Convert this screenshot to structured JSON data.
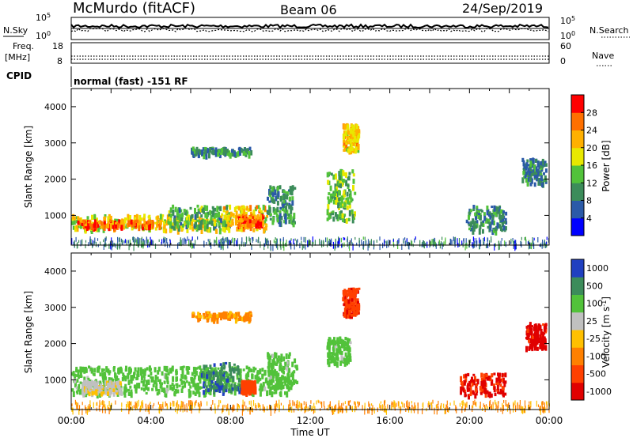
{
  "header": {
    "station": "McMurdo (fitACF)",
    "beam": "Beam 06",
    "date": "24/Sep/2019"
  },
  "summary_panels": {
    "noise": {
      "left_label": "N.Sky",
      "left_ticks": [
        "10^5",
        "10^0"
      ],
      "right_label": "N.Search",
      "right_ticks": [
        "10^5",
        "10^0"
      ]
    },
    "frequency": {
      "left_label_1": "Freq.",
      "left_label_2": "[MHz]",
      "left_ticks": [
        "18",
        "8"
      ],
      "right_label": "Nave",
      "right_ticks": [
        "60",
        "0"
      ]
    },
    "cpid": {
      "label": "CPID",
      "text": "normal (fast) -151 RF"
    }
  },
  "colors": {
    "scale_power": [
      "#0000ff",
      "#2b5aa8",
      "#3c8c5a",
      "#52c23a",
      "#e8e800",
      "#ffb000",
      "#ff7000",
      "#ff0000"
    ],
    "scale_velocity": [
      "#2040c0",
      "#3c8c5a",
      "#52c23a",
      "#c0c0c0",
      "#ffc000",
      "#ff8000",
      "#ff4000",
      "#e00000"
    ]
  },
  "chart_data": [
    {
      "type": "heatmap",
      "name": "power",
      "ylabel": "Slant Range [km]",
      "xlabel": "",
      "xlim": [
        0,
        24
      ],
      "ylim": [
        180,
        4500
      ],
      "yticks": [
        "1000",
        "2000",
        "3000",
        "4000"
      ],
      "colorbar": {
        "label": "Power [dB]",
        "ticks": [
          "4",
          "8",
          "12",
          "16",
          "20",
          "24",
          "28"
        ],
        "range": [
          0,
          32
        ]
      },
      "patches": [
        {
          "t": [
            0.0,
            7.8
          ],
          "r": [
            620,
            1050
          ],
          "v": 18
        },
        {
          "t": [
            0.2,
            4.5
          ],
          "r": [
            700,
            900
          ],
          "v": 26
        },
        {
          "t": [
            4.8,
            8.0
          ],
          "r": [
            700,
            1300
          ],
          "v": 12
        },
        {
          "t": [
            7.6,
            9.8
          ],
          "r": [
            650,
            1300
          ],
          "v": 20
        },
        {
          "t": [
            8.3,
            9.6
          ],
          "r": [
            750,
            1050
          ],
          "v": 26
        },
        {
          "t": [
            9.8,
            11.2
          ],
          "r": [
            800,
            1850
          ],
          "v": 10
        },
        {
          "t": [
            6.0,
            9.0
          ],
          "r": [
            2700,
            2900
          ],
          "v": 10
        },
        {
          "t": [
            12.8,
            14.2
          ],
          "r": [
            900,
            2300
          ],
          "v": 14
        },
        {
          "t": [
            13.6,
            14.4
          ],
          "r": [
            2800,
            3550
          ],
          "v": 20
        },
        {
          "t": [
            19.8,
            21.8
          ],
          "r": [
            600,
            1300
          ],
          "v": 10
        },
        {
          "t": [
            22.6,
            23.8
          ],
          "r": [
            1900,
            2600
          ],
          "v": 9
        },
        {
          "t": [
            0.0,
            24.0
          ],
          "r": [
            200,
            420
          ],
          "v": 8
        }
      ]
    },
    {
      "type": "heatmap",
      "name": "velocity",
      "ylabel": "Slant Range [km]",
      "xlabel": "Time UT",
      "xlim": [
        0,
        24
      ],
      "ylim": [
        180,
        4500
      ],
      "yticks": [
        "1000",
        "2000",
        "3000",
        "4000"
      ],
      "xticks": [
        "00:00",
        "04:00",
        "08:00",
        "12:00",
        "16:00",
        "20:00",
        "00:00"
      ],
      "colorbar": {
        "label": "Velocity [m s^-1]",
        "ticks": [
          "1000",
          "500",
          "100",
          "25",
          "-25",
          "-100",
          "-500",
          "-1000"
        ]
      },
      "patches": [
        {
          "t": [
            0.0,
            10.8
          ],
          "r": [
            650,
            1400
          ],
          "v": 200
        },
        {
          "t": [
            6.5,
            8.5
          ],
          "r": [
            700,
            1500
          ],
          "v": 900
        },
        {
          "t": [
            0.5,
            2.5
          ],
          "r": [
            650,
            1000
          ],
          "v": 50
        },
        {
          "t": [
            8.5,
            9.2
          ],
          "r": [
            700,
            1000
          ],
          "v": -300
        },
        {
          "t": [
            9.8,
            11.3
          ],
          "r": [
            800,
            1800
          ],
          "v": 200
        },
        {
          "t": [
            6.0,
            9.0
          ],
          "r": [
            2700,
            2900
          ],
          "v": -50
        },
        {
          "t": [
            12.8,
            14.0
          ],
          "r": [
            1500,
            2200
          ],
          "v": 200
        },
        {
          "t": [
            13.6,
            14.4
          ],
          "r": [
            2800,
            3550
          ],
          "v": -400
        },
        {
          "t": [
            19.5,
            21.8
          ],
          "r": [
            600,
            1200
          ],
          "v": -600
        },
        {
          "t": [
            22.8,
            23.8
          ],
          "r": [
            1900,
            2600
          ],
          "v": -800
        },
        {
          "t": [
            0.0,
            24.0
          ],
          "r": [
            200,
            450
          ],
          "v": -30
        }
      ]
    }
  ]
}
